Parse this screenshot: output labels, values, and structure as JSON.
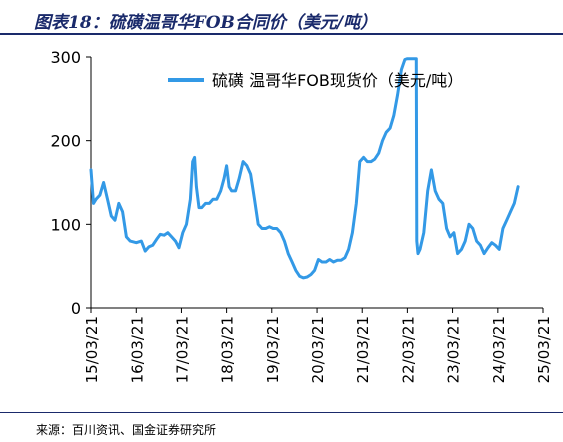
{
  "figure": {
    "title": "图表18：硫磺温哥华FOB合同价（美元/吨）",
    "source": "来源：百川资讯、国金证券研究所"
  },
  "colors": {
    "series": "#3399e6",
    "title": "#1a2a6b",
    "axis": "#000000"
  },
  "chart_data": {
    "type": "line",
    "title": "",
    "xlabel": "",
    "ylabel": "",
    "ylim": [
      0,
      300
    ],
    "yticks": [
      0,
      100,
      200,
      300
    ],
    "xlim": [
      "2015-03-21",
      "2025-03-21"
    ],
    "xticks": [
      "15/03/21",
      "16/03/21",
      "17/03/21",
      "18/03/21",
      "19/03/21",
      "20/03/21",
      "21/03/21",
      "22/03/21",
      "23/03/21",
      "24/03/21",
      "25/03/21"
    ],
    "grid": false,
    "legend": "top-right",
    "series": [
      {
        "name": "硫磺 温哥华FOB现货价（美元/吨）",
        "points": [
          [
            "2015-03-21",
            165
          ],
          [
            "2015-04-10",
            125
          ],
          [
            "2015-05-01",
            130
          ],
          [
            "2015-06-01",
            135
          ],
          [
            "2015-07-01",
            150
          ],
          [
            "2015-08-01",
            130
          ],
          [
            "2015-09-01",
            110
          ],
          [
            "2015-10-01",
            105
          ],
          [
            "2015-11-01",
            125
          ],
          [
            "2015-12-01",
            115
          ],
          [
            "2016-01-01",
            85
          ],
          [
            "2016-02-01",
            80
          ],
          [
            "2016-03-21",
            78
          ],
          [
            "2016-05-01",
            80
          ],
          [
            "2016-06-01",
            68
          ],
          [
            "2016-07-01",
            73
          ],
          [
            "2016-08-01",
            75
          ],
          [
            "2016-09-01",
            82
          ],
          [
            "2016-10-01",
            88
          ],
          [
            "2016-11-01",
            87
          ],
          [
            "2016-12-01",
            90
          ],
          [
            "2017-01-01",
            85
          ],
          [
            "2017-02-01",
            80
          ],
          [
            "2017-03-01",
            72
          ],
          [
            "2017-04-01",
            90
          ],
          [
            "2017-05-01",
            100
          ],
          [
            "2017-06-01",
            130
          ],
          [
            "2017-06-20",
            175
          ],
          [
            "2017-07-05",
            180
          ],
          [
            "2017-07-20",
            145
          ],
          [
            "2017-08-10",
            120
          ],
          [
            "2017-09-01",
            120
          ],
          [
            "2017-10-01",
            125
          ],
          [
            "2017-11-01",
            125
          ],
          [
            "2017-12-01",
            130
          ],
          [
            "2018-01-01",
            130
          ],
          [
            "2018-02-01",
            140
          ],
          [
            "2018-03-01",
            155
          ],
          [
            "2018-03-21",
            170
          ],
          [
            "2018-04-10",
            145
          ],
          [
            "2018-05-01",
            140
          ],
          [
            "2018-06-01",
            140
          ],
          [
            "2018-07-01",
            155
          ],
          [
            "2018-08-01",
            175
          ],
          [
            "2018-09-01",
            170
          ],
          [
            "2018-10-01",
            160
          ],
          [
            "2018-11-01",
            130
          ],
          [
            "2018-12-01",
            100
          ],
          [
            "2019-01-01",
            95
          ],
          [
            "2019-02-01",
            95
          ],
          [
            "2019-03-01",
            97
          ],
          [
            "2019-04-01",
            95
          ],
          [
            "2019-05-01",
            95
          ],
          [
            "2019-06-01",
            90
          ],
          [
            "2019-07-01",
            80
          ],
          [
            "2019-08-01",
            65
          ],
          [
            "2019-09-01",
            55
          ],
          [
            "2019-10-01",
            45
          ],
          [
            "2019-11-01",
            38
          ],
          [
            "2019-12-01",
            36
          ],
          [
            "2020-01-01",
            37
          ],
          [
            "2020-02-01",
            40
          ],
          [
            "2020-03-01",
            45
          ],
          [
            "2020-04-01",
            58
          ],
          [
            "2020-05-01",
            55
          ],
          [
            "2020-06-01",
            55
          ],
          [
            "2020-07-01",
            58
          ],
          [
            "2020-08-01",
            55
          ],
          [
            "2020-09-01",
            57
          ],
          [
            "2020-10-01",
            57
          ],
          [
            "2020-11-01",
            60
          ],
          [
            "2020-12-01",
            70
          ],
          [
            "2021-01-01",
            90
          ],
          [
            "2021-02-01",
            125
          ],
          [
            "2021-03-01",
            175
          ],
          [
            "2021-04-01",
            180
          ],
          [
            "2021-05-01",
            175
          ],
          [
            "2021-06-01",
            175
          ],
          [
            "2021-07-01",
            178
          ],
          [
            "2021-08-01",
            185
          ],
          [
            "2021-09-01",
            200
          ],
          [
            "2021-10-01",
            210
          ],
          [
            "2021-11-01",
            215
          ],
          [
            "2021-12-01",
            230
          ],
          [
            "2022-01-01",
            255
          ],
          [
            "2022-02-01",
            285
          ],
          [
            "2022-03-01",
            297
          ],
          [
            "2022-03-21",
            298
          ],
          [
            "2022-06-01",
            298
          ],
          [
            "2022-06-05",
            80
          ],
          [
            "2022-06-15",
            65
          ],
          [
            "2022-07-01",
            70
          ],
          [
            "2022-08-01",
            90
          ],
          [
            "2022-09-01",
            140
          ],
          [
            "2022-10-01",
            165
          ],
          [
            "2022-11-01",
            140
          ],
          [
            "2022-12-01",
            130
          ],
          [
            "2023-01-01",
            125
          ],
          [
            "2023-02-01",
            95
          ],
          [
            "2023-03-01",
            85
          ],
          [
            "2023-04-01",
            90
          ],
          [
            "2023-05-01",
            65
          ],
          [
            "2023-06-01",
            70
          ],
          [
            "2023-07-01",
            80
          ],
          [
            "2023-08-01",
            100
          ],
          [
            "2023-09-01",
            95
          ],
          [
            "2023-10-01",
            80
          ],
          [
            "2023-11-01",
            75
          ],
          [
            "2023-12-01",
            65
          ],
          [
            "2024-01-01",
            72
          ],
          [
            "2024-02-01",
            78
          ],
          [
            "2024-03-01",
            75
          ],
          [
            "2024-04-01",
            70
          ],
          [
            "2024-05-01",
            95
          ],
          [
            "2024-06-01",
            105
          ],
          [
            "2024-07-01",
            115
          ],
          [
            "2024-08-01",
            125
          ],
          [
            "2024-09-01",
            145
          ]
        ]
      }
    ]
  }
}
